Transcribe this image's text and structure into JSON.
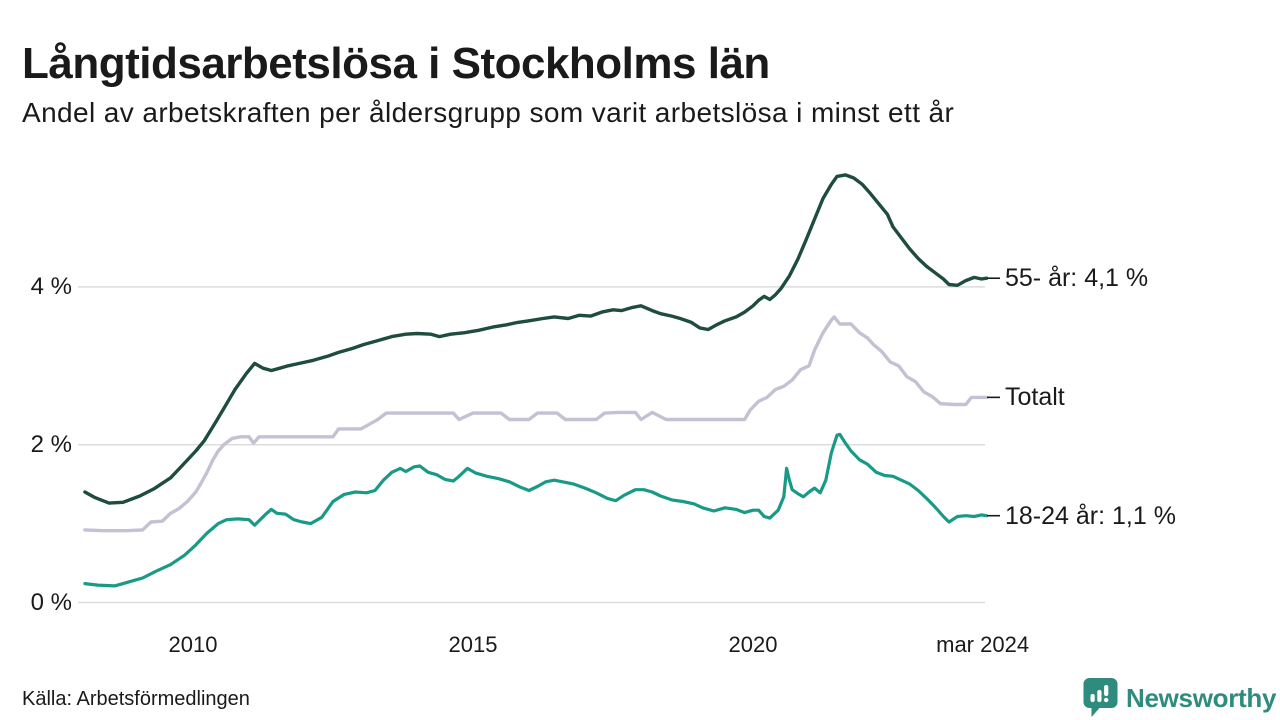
{
  "page": {
    "title": "Långtidsarbetslösa i Stockholms län",
    "subtitle": "Andel av arbetskraften per åldersgrupp som varit arbetslösa i minst ett år",
    "source": "Källa: Arbetsförmedlingen",
    "brand": "Newsworthy"
  },
  "logo": {
    "icon": "newsworthy-pin-icon",
    "color": "#2e8b7d"
  },
  "chart_data": {
    "type": "line",
    "title": "Långtidsarbetslösa i Stockholms län",
    "subtitle": "Andel av arbetskraften per åldersgrupp som varit arbetslösa i minst ett år",
    "x_unit": "year",
    "x_range": [
      2008.07,
      2024.17
    ],
    "ylim": [
      0,
      5.6
    ],
    "grid": "horizontal",
    "grid_color": "#dcdcdc",
    "text_color": "#1a1a1a",
    "leader_dash_color": "#1a1a1a",
    "legend_position": "right-annotations",
    "y_ticks": [
      {
        "value": 0,
        "label": "0 %"
      },
      {
        "value": 2,
        "label": "2 %"
      },
      {
        "value": 4,
        "label": "4 %"
      }
    ],
    "x_ticks": [
      {
        "value": 2010,
        "label": "2010"
      },
      {
        "value": 2015,
        "label": "2015"
      },
      {
        "value": 2020,
        "label": "2020"
      },
      {
        "value": 2024.1,
        "label": "mar 2024"
      }
    ],
    "series": [
      {
        "name": "55- år",
        "label": "55- år: 4,1 %",
        "end_value": 4.1,
        "color": "#1f4c40",
        "stroke_width": 3.4,
        "points": [
          [
            2008.07,
            1.4
          ],
          [
            2008.25,
            1.33
          ],
          [
            2008.5,
            1.26
          ],
          [
            2008.75,
            1.27
          ],
          [
            2009.05,
            1.35
          ],
          [
            2009.3,
            1.44
          ],
          [
            2009.6,
            1.58
          ],
          [
            2009.8,
            1.73
          ],
          [
            2010.05,
            1.92
          ],
          [
            2010.2,
            2.05
          ],
          [
            2010.4,
            2.28
          ],
          [
            2010.6,
            2.52
          ],
          [
            2010.75,
            2.7
          ],
          [
            2010.95,
            2.9
          ],
          [
            2011.1,
            3.03
          ],
          [
            2011.25,
            2.97
          ],
          [
            2011.4,
            2.94
          ],
          [
            2011.55,
            2.97
          ],
          [
            2011.7,
            3.0
          ],
          [
            2011.9,
            3.03
          ],
          [
            2012.15,
            3.07
          ],
          [
            2012.4,
            3.12
          ],
          [
            2012.6,
            3.17
          ],
          [
            2012.85,
            3.22
          ],
          [
            2013.05,
            3.27
          ],
          [
            2013.3,
            3.32
          ],
          [
            2013.55,
            3.37
          ],
          [
            2013.8,
            3.4
          ],
          [
            2014.0,
            3.41
          ],
          [
            2014.25,
            3.4
          ],
          [
            2014.4,
            3.37
          ],
          [
            2014.6,
            3.4
          ],
          [
            2014.85,
            3.42
          ],
          [
            2015.1,
            3.45
          ],
          [
            2015.35,
            3.49
          ],
          [
            2015.6,
            3.52
          ],
          [
            2015.8,
            3.55
          ],
          [
            2016.0,
            3.57
          ],
          [
            2016.25,
            3.6
          ],
          [
            2016.45,
            3.62
          ],
          [
            2016.7,
            3.6
          ],
          [
            2016.9,
            3.64
          ],
          [
            2017.1,
            3.63
          ],
          [
            2017.3,
            3.68
          ],
          [
            2017.5,
            3.71
          ],
          [
            2017.65,
            3.7
          ],
          [
            2017.85,
            3.74
          ],
          [
            2018.0,
            3.76
          ],
          [
            2018.2,
            3.7
          ],
          [
            2018.35,
            3.66
          ],
          [
            2018.55,
            3.63
          ],
          [
            2018.7,
            3.6
          ],
          [
            2018.9,
            3.55
          ],
          [
            2019.05,
            3.48
          ],
          [
            2019.2,
            3.46
          ],
          [
            2019.35,
            3.52
          ],
          [
            2019.5,
            3.57
          ],
          [
            2019.7,
            3.62
          ],
          [
            2019.85,
            3.68
          ],
          [
            2020.0,
            3.76
          ],
          [
            2020.1,
            3.83
          ],
          [
            2020.2,
            3.88
          ],
          [
            2020.3,
            3.84
          ],
          [
            2020.4,
            3.9
          ],
          [
            2020.5,
            3.98
          ],
          [
            2020.65,
            4.14
          ],
          [
            2020.8,
            4.35
          ],
          [
            2020.95,
            4.6
          ],
          [
            2021.1,
            4.86
          ],
          [
            2021.25,
            5.12
          ],
          [
            2021.4,
            5.3
          ],
          [
            2021.5,
            5.4
          ],
          [
            2021.65,
            5.42
          ],
          [
            2021.8,
            5.38
          ],
          [
            2021.95,
            5.3
          ],
          [
            2022.1,
            5.18
          ],
          [
            2022.25,
            5.05
          ],
          [
            2022.4,
            4.92
          ],
          [
            2022.5,
            4.76
          ],
          [
            2022.65,
            4.62
          ],
          [
            2022.8,
            4.48
          ],
          [
            2022.95,
            4.36
          ],
          [
            2023.1,
            4.26
          ],
          [
            2023.25,
            4.18
          ],
          [
            2023.4,
            4.1
          ],
          [
            2023.5,
            4.03
          ],
          [
            2023.65,
            4.02
          ],
          [
            2023.8,
            4.08
          ],
          [
            2023.95,
            4.12
          ],
          [
            2024.08,
            4.1
          ],
          [
            2024.17,
            4.11
          ]
        ]
      },
      {
        "name": "Totalt",
        "label": "Totalt",
        "end_value": 2.6,
        "color": "#c3c1d4",
        "stroke_width": 3.4,
        "points": [
          [
            2008.07,
            0.92
          ],
          [
            2008.4,
            0.91
          ],
          [
            2008.8,
            0.91
          ],
          [
            2009.1,
            0.92
          ],
          [
            2009.25,
            1.02
          ],
          [
            2009.45,
            1.03
          ],
          [
            2009.6,
            1.13
          ],
          [
            2009.75,
            1.19
          ],
          [
            2009.9,
            1.28
          ],
          [
            2010.05,
            1.4
          ],
          [
            2010.15,
            1.52
          ],
          [
            2010.25,
            1.65
          ],
          [
            2010.35,
            1.8
          ],
          [
            2010.45,
            1.92
          ],
          [
            2010.55,
            2.0
          ],
          [
            2010.7,
            2.08
          ],
          [
            2010.85,
            2.1
          ],
          [
            2011.0,
            2.1
          ],
          [
            2011.08,
            2.02
          ],
          [
            2011.18,
            2.1
          ],
          [
            2011.5,
            2.1
          ],
          [
            2012.0,
            2.1
          ],
          [
            2012.5,
            2.1
          ],
          [
            2012.6,
            2.2
          ],
          [
            2013.0,
            2.2
          ],
          [
            2013.15,
            2.26
          ],
          [
            2013.3,
            2.32
          ],
          [
            2013.45,
            2.4
          ],
          [
            2014.0,
            2.4
          ],
          [
            2014.65,
            2.4
          ],
          [
            2014.75,
            2.32
          ],
          [
            2015.0,
            2.4
          ],
          [
            2015.5,
            2.4
          ],
          [
            2015.65,
            2.32
          ],
          [
            2016.0,
            2.32
          ],
          [
            2016.15,
            2.4
          ],
          [
            2016.5,
            2.4
          ],
          [
            2016.65,
            2.32
          ],
          [
            2017.2,
            2.32
          ],
          [
            2017.35,
            2.4
          ],
          [
            2017.6,
            2.41
          ],
          [
            2017.9,
            2.41
          ],
          [
            2018.0,
            2.32
          ],
          [
            2018.2,
            2.41
          ],
          [
            2018.45,
            2.32
          ],
          [
            2019.0,
            2.32
          ],
          [
            2019.5,
            2.32
          ],
          [
            2019.85,
            2.32
          ],
          [
            2019.95,
            2.44
          ],
          [
            2020.1,
            2.55
          ],
          [
            2020.25,
            2.6
          ],
          [
            2020.4,
            2.7
          ],
          [
            2020.55,
            2.74
          ],
          [
            2020.7,
            2.82
          ],
          [
            2020.85,
            2.95
          ],
          [
            2021.0,
            3.0
          ],
          [
            2021.1,
            3.2
          ],
          [
            2021.25,
            3.42
          ],
          [
            2021.4,
            3.58
          ],
          [
            2021.45,
            3.62
          ],
          [
            2021.55,
            3.53
          ],
          [
            2021.75,
            3.53
          ],
          [
            2021.9,
            3.42
          ],
          [
            2022.05,
            3.35
          ],
          [
            2022.15,
            3.27
          ],
          [
            2022.3,
            3.18
          ],
          [
            2022.45,
            3.05
          ],
          [
            2022.6,
            3.0
          ],
          [
            2022.75,
            2.86
          ],
          [
            2022.9,
            2.8
          ],
          [
            2023.05,
            2.67
          ],
          [
            2023.2,
            2.61
          ],
          [
            2023.35,
            2.52
          ],
          [
            2023.6,
            2.51
          ],
          [
            2023.8,
            2.51
          ],
          [
            2023.9,
            2.6
          ],
          [
            2024.17,
            2.6
          ]
        ]
      },
      {
        "name": "18-24 år",
        "label": "18-24 år: 1,1 %",
        "end_value": 1.1,
        "color": "#189a86",
        "stroke_width": 3.2,
        "points": [
          [
            2008.07,
            0.24
          ],
          [
            2008.3,
            0.22
          ],
          [
            2008.6,
            0.21
          ],
          [
            2008.9,
            0.27
          ],
          [
            2009.1,
            0.31
          ],
          [
            2009.35,
            0.4
          ],
          [
            2009.6,
            0.48
          ],
          [
            2009.85,
            0.6
          ],
          [
            2010.05,
            0.73
          ],
          [
            2010.25,
            0.88
          ],
          [
            2010.45,
            1.0
          ],
          [
            2010.6,
            1.05
          ],
          [
            2010.8,
            1.06
          ],
          [
            2011.0,
            1.05
          ],
          [
            2011.1,
            0.98
          ],
          [
            2011.3,
            1.12
          ],
          [
            2011.4,
            1.18
          ],
          [
            2011.5,
            1.13
          ],
          [
            2011.65,
            1.12
          ],
          [
            2011.8,
            1.05
          ],
          [
            2011.95,
            1.02
          ],
          [
            2012.1,
            1.0
          ],
          [
            2012.3,
            1.08
          ],
          [
            2012.5,
            1.28
          ],
          [
            2012.7,
            1.37
          ],
          [
            2012.9,
            1.4
          ],
          [
            2013.1,
            1.39
          ],
          [
            2013.25,
            1.42
          ],
          [
            2013.4,
            1.55
          ],
          [
            2013.55,
            1.65
          ],
          [
            2013.7,
            1.7
          ],
          [
            2013.8,
            1.66
          ],
          [
            2013.95,
            1.72
          ],
          [
            2014.05,
            1.73
          ],
          [
            2014.2,
            1.65
          ],
          [
            2014.35,
            1.62
          ],
          [
            2014.5,
            1.56
          ],
          [
            2014.65,
            1.54
          ],
          [
            2014.75,
            1.6
          ],
          [
            2014.9,
            1.7
          ],
          [
            2015.05,
            1.64
          ],
          [
            2015.25,
            1.6
          ],
          [
            2015.45,
            1.57
          ],
          [
            2015.65,
            1.53
          ],
          [
            2015.85,
            1.46
          ],
          [
            2016.0,
            1.42
          ],
          [
            2016.15,
            1.47
          ],
          [
            2016.3,
            1.53
          ],
          [
            2016.45,
            1.55
          ],
          [
            2016.6,
            1.53
          ],
          [
            2016.8,
            1.5
          ],
          [
            2017.0,
            1.45
          ],
          [
            2017.2,
            1.39
          ],
          [
            2017.4,
            1.32
          ],
          [
            2017.55,
            1.29
          ],
          [
            2017.7,
            1.36
          ],
          [
            2017.9,
            1.43
          ],
          [
            2018.05,
            1.43
          ],
          [
            2018.2,
            1.4
          ],
          [
            2018.35,
            1.35
          ],
          [
            2018.55,
            1.3
          ],
          [
            2018.75,
            1.28
          ],
          [
            2018.95,
            1.25
          ],
          [
            2019.1,
            1.2
          ],
          [
            2019.3,
            1.16
          ],
          [
            2019.5,
            1.2
          ],
          [
            2019.7,
            1.18
          ],
          [
            2019.85,
            1.14
          ],
          [
            2020.0,
            1.17
          ],
          [
            2020.1,
            1.17
          ],
          [
            2020.2,
            1.09
          ],
          [
            2020.3,
            1.07
          ],
          [
            2020.45,
            1.17
          ],
          [
            2020.55,
            1.34
          ],
          [
            2020.6,
            1.7
          ],
          [
            2020.65,
            1.55
          ],
          [
            2020.7,
            1.43
          ],
          [
            2020.8,
            1.38
          ],
          [
            2020.9,
            1.34
          ],
          [
            2021.0,
            1.4
          ],
          [
            2021.1,
            1.45
          ],
          [
            2021.2,
            1.39
          ],
          [
            2021.3,
            1.55
          ],
          [
            2021.4,
            1.9
          ],
          [
            2021.5,
            2.12
          ],
          [
            2021.55,
            2.13
          ],
          [
            2021.65,
            2.02
          ],
          [
            2021.75,
            1.92
          ],
          [
            2021.9,
            1.81
          ],
          [
            2022.05,
            1.75
          ],
          [
            2022.2,
            1.65
          ],
          [
            2022.35,
            1.61
          ],
          [
            2022.5,
            1.6
          ],
          [
            2022.65,
            1.55
          ],
          [
            2022.8,
            1.5
          ],
          [
            2022.95,
            1.42
          ],
          [
            2023.1,
            1.32
          ],
          [
            2023.25,
            1.21
          ],
          [
            2023.4,
            1.09
          ],
          [
            2023.5,
            1.02
          ],
          [
            2023.65,
            1.09
          ],
          [
            2023.8,
            1.1
          ],
          [
            2023.95,
            1.09
          ],
          [
            2024.08,
            1.11
          ],
          [
            2024.17,
            1.1
          ]
        ]
      }
    ]
  }
}
